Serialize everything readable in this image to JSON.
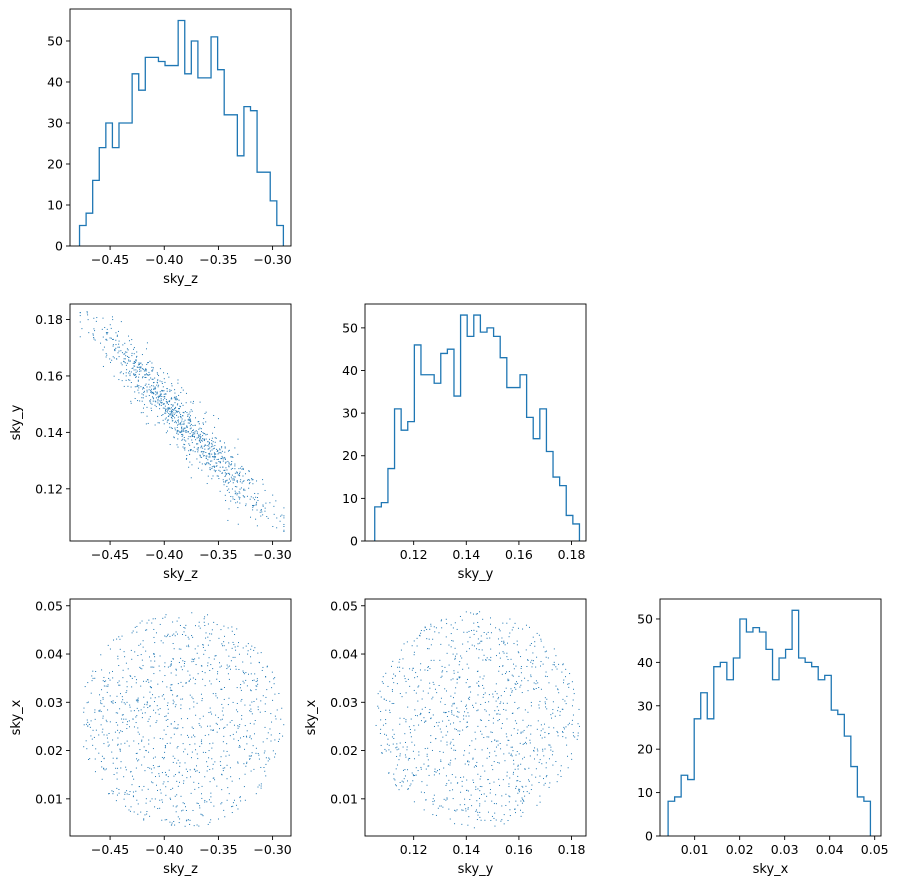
{
  "series_color": "#1f77b4",
  "chart_data": [
    {
      "id": "hist-sky-z",
      "type": "histogram",
      "xlabel": "sky_z",
      "ylabel": "",
      "xlim": [
        -0.487,
        -0.283
      ],
      "ylim": [
        0,
        57.8
      ],
      "xticks": [
        -0.45,
        -0.4,
        -0.35,
        -0.3
      ],
      "xtick_labels": [
        "−0.45",
        "−0.40",
        "−0.35",
        "−0.30"
      ],
      "yticks": [
        0,
        10,
        20,
        30,
        40,
        50
      ],
      "ytick_labels": [
        "0",
        "10",
        "20",
        "30",
        "40",
        "50"
      ],
      "bin_start": -0.4782,
      "bin_width": 0.00607,
      "counts": [
        5,
        8,
        16,
        24,
        30,
        24,
        30,
        30,
        42,
        38,
        46,
        46,
        45,
        44,
        44,
        55,
        42,
        50,
        41,
        41,
        51,
        43,
        32,
        32,
        22,
        34,
        33,
        18,
        18,
        11,
        5
      ]
    },
    {
      "id": "scatter-sky-z-sky-y",
      "type": "scatter",
      "xlabel": "sky_z",
      "ylabel": "sky_y",
      "xlim": [
        -0.487,
        -0.283
      ],
      "ylim": [
        0.1015,
        0.1855
      ],
      "xticks": [
        -0.45,
        -0.4,
        -0.35,
        -0.3
      ],
      "xtick_labels": [
        "−0.45",
        "−0.40",
        "−0.35",
        "−0.30"
      ],
      "yticks": [
        0.12,
        0.14,
        0.16,
        0.18
      ],
      "ytick_labels": [
        "0.12",
        "0.14",
        "0.16",
        "0.18"
      ],
      "sample": {
        "count": 1050,
        "x_range": [
          -0.478,
          -0.29
        ],
        "y_range": [
          0.105,
          0.183
        ],
        "correlation": -0.95
      }
    },
    {
      "id": "hist-sky-y",
      "type": "histogram",
      "xlabel": "sky_y",
      "ylabel": "",
      "xlim": [
        0.1015,
        0.1855
      ],
      "ylim": [
        0,
        55.6
      ],
      "xticks": [
        0.12,
        0.14,
        0.16,
        0.18
      ],
      "xtick_labels": [
        "0.12",
        "0.14",
        "0.16",
        "0.18"
      ],
      "yticks": [
        0,
        10,
        20,
        30,
        40,
        50
      ],
      "ytick_labels": [
        "0",
        "10",
        "20",
        "30",
        "40",
        "50"
      ],
      "bin_start": 0.1052,
      "bin_width": 0.00251,
      "counts": [
        8,
        9,
        17,
        31,
        26,
        28,
        46,
        39,
        39,
        37,
        44,
        45,
        34,
        53,
        48,
        53,
        49,
        50,
        48,
        43,
        36,
        36,
        39,
        29,
        24,
        31,
        21,
        15,
        13,
        6,
        4
      ]
    },
    {
      "id": "scatter-sky-z-sky-x",
      "type": "scatter",
      "xlabel": "sky_z",
      "ylabel": "sky_x",
      "xlim": [
        -0.487,
        -0.283
      ],
      "ylim": [
        0.0023,
        0.0514
      ],
      "xticks": [
        -0.45,
        -0.4,
        -0.35,
        -0.3
      ],
      "xtick_labels": [
        "−0.45",
        "−0.40",
        "−0.35",
        "−0.30"
      ],
      "yticks": [
        0.01,
        0.02,
        0.03,
        0.04,
        0.05
      ],
      "ytick_labels": [
        "0.01",
        "0.02",
        "0.03",
        "0.04",
        "0.05"
      ],
      "sample": {
        "count": 1050,
        "x_range": [
          -0.478,
          -0.29
        ],
        "y_range": [
          0.004,
          0.049
        ],
        "correlation": 0
      }
    },
    {
      "id": "scatter-sky-y-sky-x",
      "type": "scatter",
      "xlabel": "sky_y",
      "ylabel": "sky_x",
      "xlim": [
        0.1015,
        0.1855
      ],
      "ylim": [
        0.0023,
        0.0514
      ],
      "xticks": [
        0.12,
        0.14,
        0.16,
        0.18
      ],
      "xtick_labels": [
        "0.12",
        "0.14",
        "0.16",
        "0.18"
      ],
      "yticks": [
        0.01,
        0.02,
        0.03,
        0.04,
        0.05
      ],
      "ytick_labels": [
        "0.01",
        "0.02",
        "0.03",
        "0.04",
        "0.05"
      ],
      "sample": {
        "count": 1050,
        "x_range": [
          0.105,
          0.183
        ],
        "y_range": [
          0.004,
          0.049
        ],
        "correlation": 0
      }
    },
    {
      "id": "hist-sky-x",
      "type": "histogram",
      "xlabel": "sky_x",
      "ylabel": "",
      "xlim": [
        0.0023,
        0.0514
      ],
      "ylim": [
        0,
        54.6
      ],
      "xticks": [
        0.01,
        0.02,
        0.03,
        0.04,
        0.05
      ],
      "xtick_labels": [
        "0.01",
        "0.02",
        "0.03",
        "0.04",
        "0.05"
      ],
      "yticks": [
        0,
        10,
        20,
        30,
        40,
        50
      ],
      "ytick_labels": [
        "0",
        "10",
        "20",
        "30",
        "40",
        "50"
      ],
      "bin_start": 0.0041,
      "bin_width": 0.00145,
      "counts": [
        8,
        9,
        14,
        13,
        27,
        33,
        27,
        39,
        40,
        36,
        41,
        50,
        47,
        48,
        47,
        43,
        36,
        41,
        43,
        52,
        41,
        40,
        39,
        36,
        37,
        29,
        28,
        23,
        16,
        9,
        8
      ]
    }
  ]
}
